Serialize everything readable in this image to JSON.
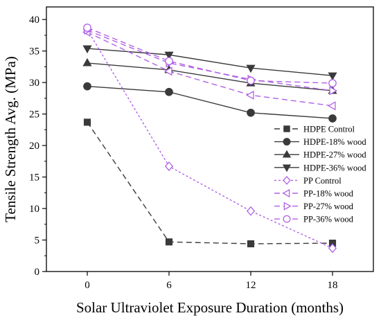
{
  "chart_data": {
    "type": "line",
    "title": "",
    "xlabel": "Solar Ultraviolet Exposure Duration (months)",
    "ylabel": "Tensile Strength Avg. (MPa)",
    "x": [
      0,
      6,
      12,
      18
    ],
    "x_ticks": [
      "0",
      "6",
      "12",
      "18"
    ],
    "xlim": [
      -3,
      21
    ],
    "ylim": [
      0,
      42
    ],
    "y_ticks": [
      "0",
      "5",
      "10",
      "15",
      "20",
      "25",
      "30",
      "35",
      "40"
    ],
    "grid": false,
    "legend_position": "right",
    "series": [
      {
        "name": "HDPE Control",
        "values": [
          23.7,
          4.7,
          4.4,
          4.5
        ],
        "color": "#3a3a3a",
        "marker": "square",
        "dash": "dash",
        "filled": true
      },
      {
        "name": "HDPE-18% wood",
        "values": [
          29.4,
          28.5,
          25.2,
          24.3
        ],
        "color": "#3a3a3a",
        "marker": "circle",
        "dash": "solid",
        "filled": true
      },
      {
        "name": "HDPE-27% wood",
        "values": [
          33.1,
          32.0,
          29.9,
          28.7
        ],
        "color": "#3a3a3a",
        "marker": "triangle-up",
        "dash": "solid",
        "filled": true
      },
      {
        "name": "HDPE-36% wood",
        "values": [
          35.4,
          34.4,
          32.3,
          31.1
        ],
        "color": "#3a3a3a",
        "marker": "triangle-down",
        "dash": "solid",
        "filled": true
      },
      {
        "name": "PP Control",
        "values": [
          38.4,
          16.7,
          9.6,
          3.7
        ],
        "color": "#b060e6",
        "marker": "diamond",
        "dash": "dot",
        "filled": false
      },
      {
        "name": "PP-18% wood",
        "values": [
          38.0,
          31.8,
          28.0,
          26.3
        ],
        "color": "#b060e6",
        "marker": "triangle-left",
        "dash": "dash",
        "filled": false
      },
      {
        "name": "PP-27% wood",
        "values": [
          38.3,
          33.1,
          30.5,
          28.7
        ],
        "color": "#b060e6",
        "marker": "triangle-right",
        "dash": "dash",
        "filled": false
      },
      {
        "name": "PP-36% wood",
        "values": [
          38.7,
          33.4,
          30.3,
          29.9
        ],
        "color": "#b060e6",
        "marker": "circle",
        "dash": "dash",
        "filled": false
      }
    ]
  }
}
